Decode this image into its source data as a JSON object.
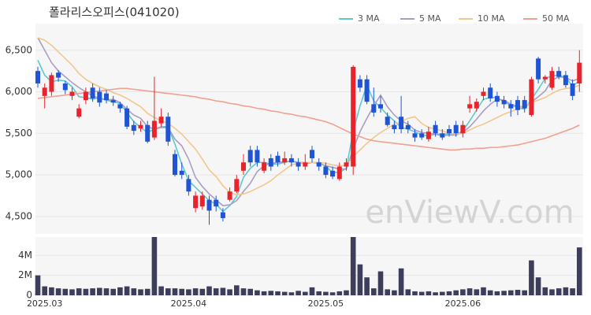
{
  "chart_data": [
    {
      "type": "candlestick",
      "title": "폴라리스오피스(041020)",
      "watermark": "enViewV.com",
      "up_color": "#e8232b",
      "down_color": "#1f55d5",
      "grid": true,
      "legend": "top-right",
      "ylim": [
        4290,
        6820
      ],
      "yticks": [
        {
          "value": 4500,
          "label": "4,500"
        },
        {
          "value": 5000,
          "label": "5,000"
        },
        {
          "value": 5500,
          "label": "5,500"
        },
        {
          "value": 6000,
          "label": "6,000"
        },
        {
          "value": 6500,
          "label": "6,500"
        }
      ],
      "open": [
        6250,
        5950,
        6000,
        6230,
        6100,
        5950,
        5700,
        5900,
        6050,
        6000,
        5980,
        5900,
        5850,
        5800,
        5600,
        5560,
        5600,
        5450,
        5620,
        5700,
        5250,
        5050,
        4950,
        4600,
        4620,
        4700,
        4700,
        4550,
        4700,
        4800,
        5050,
        5300,
        5300,
        5050,
        5200,
        5230,
        5150,
        5200,
        5150,
        5100,
        5300,
        5150,
        5100,
        5050,
        4950,
        5100,
        5100,
        6150,
        6150,
        5850,
        5850,
        5700,
        5600,
        5700,
        5600,
        5500,
        5500,
        5430,
        5600,
        5500,
        5550,
        5600,
        5500,
        5800,
        5800,
        5950,
        6050,
        5950,
        5900,
        5850,
        5900,
        5900,
        5720,
        6400,
        6150,
        6050,
        6250,
        6200,
        6100,
        6100
      ],
      "high": [
        6300,
        6100,
        6230,
        6260,
        6130,
        6050,
        5850,
        6050,
        6100,
        6050,
        6020,
        5950,
        5880,
        5830,
        5650,
        5650,
        5650,
        6180,
        5800,
        5750,
        5300,
        5150,
        5000,
        4800,
        4800,
        4750,
        4750,
        4600,
        4850,
        5000,
        5250,
        5350,
        5350,
        5200,
        5250,
        5280,
        5280,
        5250,
        5200,
        5250,
        5350,
        5200,
        5150,
        5100,
        5150,
        5200,
        6320,
        6200,
        6200,
        6050,
        5950,
        5750,
        5650,
        5950,
        5650,
        5550,
        5550,
        5580,
        5650,
        5550,
        5600,
        5650,
        5650,
        5950,
        5920,
        6050,
        6100,
        6000,
        5950,
        5900,
        5950,
        5950,
        6180,
        6420,
        6200,
        6300,
        6300,
        6250,
        6150,
        6500
      ],
      "low": [
        6050,
        5800,
        5950,
        6120,
        5970,
        5900,
        5680,
        5850,
        5880,
        5820,
        5860,
        5830,
        5750,
        5550,
        5480,
        5520,
        5380,
        5420,
        5580,
        5350,
        4980,
        4950,
        4750,
        4550,
        4580,
        4400,
        4560,
        4440,
        4680,
        4780,
        5000,
        5100,
        5100,
        5020,
        5050,
        5100,
        5120,
        5100,
        5050,
        5060,
        5150,
        5050,
        4960,
        4950,
        4930,
        5050,
        5000,
        6000,
        5850,
        5700,
        5750,
        5580,
        5500,
        5500,
        5500,
        5400,
        5420,
        5400,
        5460,
        5420,
        5460,
        5460,
        5450,
        5750,
        5760,
        5900,
        5880,
        5820,
        5800,
        5700,
        5720,
        5750,
        5700,
        6100,
        6100,
        6020,
        6150,
        6050,
        5900,
        6000
      ],
      "close": [
        6100,
        6050,
        6200,
        6170,
        6020,
        6000,
        5800,
        6000,
        5920,
        5870,
        5900,
        5870,
        5800,
        5580,
        5530,
        5600,
        5400,
        5650,
        5700,
        5400,
        5000,
        5000,
        4800,
        4750,
        4750,
        4570,
        4620,
        4480,
        4800,
        4950,
        5150,
        5150,
        5150,
        5150,
        5100,
        5150,
        5200,
        5150,
        5100,
        5150,
        5200,
        5100,
        5000,
        4980,
        5100,
        5150,
        6300,
        6050,
        5880,
        5750,
        5800,
        5600,
        5550,
        5550,
        5550,
        5450,
        5450,
        5520,
        5500,
        5450,
        5500,
        5500,
        5600,
        5850,
        5880,
        6000,
        5920,
        5880,
        5850,
        5800,
        5780,
        5800,
        6150,
        6150,
        6180,
        6250,
        6180,
        6080,
        5950,
        6350
      ],
      "series": [
        {
          "name": "3 MA",
          "color": "#5cc9d1",
          "values": [
            6380,
            6200,
            6120,
            6140,
            6130,
            6060,
            5940,
            5930,
            5910,
            5930,
            5900,
            5880,
            5860,
            5750,
            5640,
            5570,
            5510,
            5550,
            5580,
            5580,
            5370,
            5130,
            4930,
            4850,
            4770,
            4690,
            4650,
            4560,
            4630,
            4740,
            4970,
            5080,
            5150,
            5150,
            5130,
            5130,
            5150,
            5170,
            5150,
            5130,
            5150,
            5150,
            5100,
            5030,
            5030,
            5080,
            5520,
            5830,
            6080,
            5890,
            5810,
            5720,
            5650,
            5570,
            5550,
            5520,
            5480,
            5470,
            5490,
            5490,
            5490,
            5480,
            5530,
            5650,
            5780,
            5910,
            5930,
            5930,
            5880,
            5840,
            5810,
            5790,
            5910,
            6030,
            6160,
            6190,
            6200,
            6170,
            6070,
            6130
          ]
        },
        {
          "name": "5 MA",
          "color": "#a99ec2",
          "values": [
            6650,
            6500,
            6350,
            6250,
            6180,
            6110,
            6050,
            6000,
            5950,
            5920,
            5900,
            5910,
            5870,
            5790,
            5720,
            5680,
            5580,
            5550,
            5570,
            5570,
            5430,
            5350,
            5190,
            4970,
            4860,
            4770,
            4700,
            4630,
            4640,
            4690,
            4800,
            4900,
            5040,
            5110,
            5140,
            5150,
            5160,
            5160,
            5150,
            5150,
            5150,
            5140,
            5110,
            5090,
            5070,
            5070,
            5310,
            5520,
            5680,
            5830,
            5960,
            5820,
            5720,
            5650,
            5610,
            5540,
            5510,
            5500,
            5490,
            5470,
            5480,
            5480,
            5510,
            5580,
            5670,
            5770,
            5850,
            5910,
            5900,
            5850,
            5830,
            5810,
            5880,
            5940,
            6010,
            6140,
            6180,
            6170,
            6130,
            6160
          ]
        },
        {
          "name": "10 MA",
          "color": "#f3c78c",
          "values": [
            6650,
            6620,
            6560,
            6480,
            6400,
            6320,
            6220,
            6150,
            6100,
            6060,
            6030,
            5990,
            5960,
            5920,
            5870,
            5820,
            5740,
            5690,
            5650,
            5620,
            5560,
            5490,
            5400,
            5310,
            5190,
            5060,
            4980,
            4870,
            4790,
            4760,
            4770,
            4800,
            4840,
            4880,
            4930,
            5000,
            5060,
            5120,
            5140,
            5150,
            5150,
            5150,
            5140,
            5120,
            5110,
            5110,
            5220,
            5300,
            5380,
            5450,
            5510,
            5560,
            5610,
            5640,
            5680,
            5700,
            5620,
            5570,
            5550,
            5530,
            5500,
            5490,
            5500,
            5540,
            5580,
            5610,
            5650,
            5690,
            5730,
            5760,
            5800,
            5830,
            5870,
            5900,
            5930,
            5980,
            6020,
            6040,
            6050,
            6080
          ]
        },
        {
          "name": "50 MA",
          "color": "#f2a08f",
          "values": [
            5920,
            5930,
            5940,
            5950,
            5960,
            5970,
            5980,
            5990,
            6000,
            6010,
            6020,
            6030,
            6040,
            6040,
            6030,
            6020,
            6010,
            6000,
            5990,
            5980,
            5970,
            5960,
            5950,
            5940,
            5920,
            5910,
            5890,
            5880,
            5860,
            5850,
            5830,
            5820,
            5800,
            5790,
            5770,
            5760,
            5740,
            5730,
            5710,
            5700,
            5680,
            5660,
            5640,
            5610,
            5570,
            5530,
            5490,
            5460,
            5430,
            5410,
            5400,
            5390,
            5380,
            5370,
            5360,
            5350,
            5340,
            5330,
            5320,
            5310,
            5300,
            5300,
            5310,
            5310,
            5320,
            5320,
            5330,
            5330,
            5340,
            5350,
            5360,
            5380,
            5400,
            5420,
            5440,
            5470,
            5500,
            5530,
            5560,
            5600
          ]
        }
      ]
    },
    {
      "type": "bar",
      "color": "#3d3d5c",
      "grid": true,
      "ylim": [
        0,
        5840000
      ],
      "yticks": [
        0,
        {
          "value": 2000000,
          "label": "2M"
        },
        {
          "value": 4000000,
          "label": "4M"
        }
      ],
      "categories": [
        null,
        "2025.03",
        null,
        null,
        null,
        null,
        null,
        null,
        null,
        null,
        null,
        null,
        null,
        null,
        null,
        null,
        null,
        null,
        null,
        null,
        null,
        null,
        "2025.04",
        null,
        null,
        null,
        null,
        null,
        null,
        null,
        null,
        null,
        null,
        null,
        null,
        null,
        null,
        null,
        null,
        null,
        null,
        null,
        "2025.05",
        null,
        null,
        null,
        null,
        null,
        null,
        null,
        null,
        null,
        null,
        null,
        null,
        null,
        null,
        null,
        null,
        null,
        null,
        null,
        "2025.06",
        null,
        null,
        null,
        null,
        null,
        null,
        null,
        null,
        null,
        null,
        null,
        null,
        null,
        null,
        null,
        null,
        null
      ],
      "values": [
        2000000,
        900000,
        800000,
        700000,
        650000,
        600000,
        700000,
        650000,
        700000,
        750000,
        700000,
        650000,
        800000,
        900000,
        700000,
        600000,
        650000,
        5840000,
        900000,
        700000,
        700000,
        650000,
        600000,
        700000,
        650000,
        900000,
        700000,
        750000,
        600000,
        1000000,
        700000,
        650000,
        500000,
        400000,
        450000,
        400000,
        350000,
        300000,
        450000,
        350000,
        800000,
        400000,
        350000,
        300000,
        400000,
        500000,
        5840000,
        3100000,
        1800000,
        700000,
        2400000,
        600000,
        500000,
        2700000,
        600000,
        400000,
        350000,
        400000,
        300000,
        350000,
        400000,
        500000,
        600000,
        700000,
        600000,
        800000,
        500000,
        400000,
        450000,
        500000,
        550000,
        500000,
        3500000,
        1800000,
        800000,
        600000,
        700000,
        800000,
        700000,
        4800000
      ]
    }
  ]
}
